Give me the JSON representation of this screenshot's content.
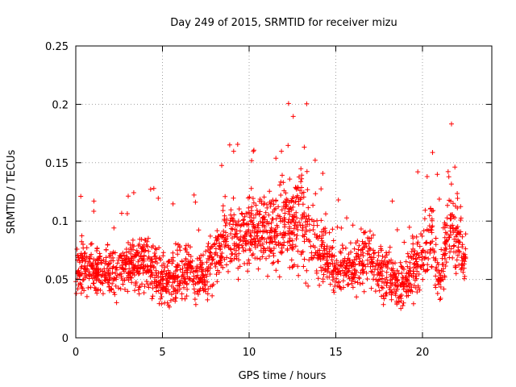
{
  "chart_data": {
    "type": "scatter",
    "title": "Day 249 of 2015, SRMTID for receiver mizu",
    "xlabel": "GPS time / hours",
    "ylabel": "SRMTID / TECUs",
    "xlim": [
      0,
      24
    ],
    "ylim": [
      0,
      0.25
    ],
    "x_ticks": [
      0,
      5,
      10,
      15,
      20
    ],
    "y_ticks": [
      0,
      0.05,
      0.1,
      0.15,
      0.2,
      0.25
    ],
    "x_tick_labels": [
      "0",
      "5",
      "10",
      "15",
      "20"
    ],
    "y_tick_labels": [
      "0",
      "0.05",
      "0.1",
      "0.15",
      "0.2",
      "0.25"
    ],
    "grid": true,
    "marker": "+",
    "series": [
      {
        "name": "SRMTID",
        "color": "#ff0000",
        "envelope_hours": [
          0,
          0.5,
          1,
          1.5,
          2,
          2.5,
          3,
          3.5,
          4,
          4.5,
          5,
          5.5,
          6,
          6.5,
          7,
          7.5,
          8,
          8.5,
          9,
          9.5,
          10,
          10.5,
          11,
          11.5,
          12,
          12.5,
          13,
          13.5,
          14,
          14.5,
          15,
          15.5,
          16,
          16.5,
          17,
          17.5,
          18,
          18.5,
          19,
          19.5,
          20,
          20.5,
          21,
          21.5,
          22,
          22.5
        ],
        "envelope_mean": [
          0.058,
          0.06,
          0.058,
          0.056,
          0.055,
          0.058,
          0.062,
          0.064,
          0.066,
          0.06,
          0.05,
          0.05,
          0.055,
          0.06,
          0.052,
          0.05,
          0.072,
          0.08,
          0.09,
          0.085,
          0.095,
          0.09,
          0.092,
          0.085,
          0.095,
          0.1,
          0.105,
          0.09,
          0.075,
          0.07,
          0.06,
          0.055,
          0.058,
          0.065,
          0.07,
          0.06,
          0.055,
          0.045,
          0.048,
          0.06,
          0.07,
          0.09,
          0.045,
          0.1,
          0.085,
          0.07
        ],
        "envelope_spread": [
          0.025,
          0.03,
          0.028,
          0.025,
          0.025,
          0.028,
          0.03,
          0.03,
          0.032,
          0.03,
          0.028,
          0.028,
          0.03,
          0.03,
          0.025,
          0.028,
          0.03,
          0.035,
          0.04,
          0.038,
          0.045,
          0.04,
          0.042,
          0.04,
          0.045,
          0.05,
          0.055,
          0.045,
          0.035,
          0.033,
          0.03,
          0.028,
          0.03,
          0.032,
          0.033,
          0.03,
          0.028,
          0.025,
          0.025,
          0.03,
          0.04,
          0.05,
          0.025,
          0.045,
          0.04,
          0.03
        ],
        "num_points": 2600
      }
    ]
  }
}
